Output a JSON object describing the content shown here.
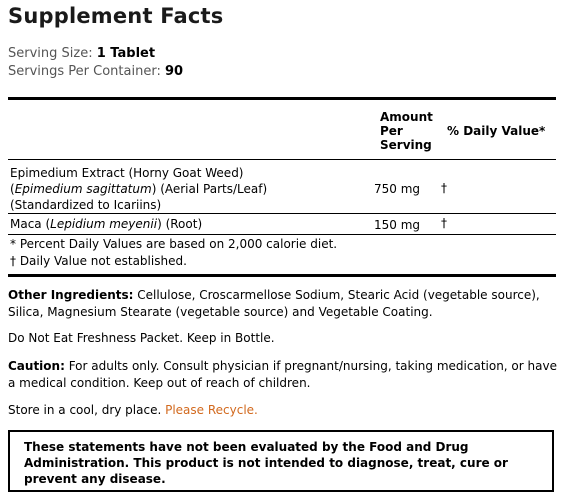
{
  "title": "Supplement Facts",
  "serving": {
    "size_label": "Serving Size:",
    "size_value": "1 Tablet",
    "per_container_label": "Servings Per Container:",
    "per_container_value": "90"
  },
  "table_headers": {
    "amount_line1": "Amount",
    "amount_line2": "Per",
    "amount_line3": "Serving",
    "daily_value": "% Daily Value*"
  },
  "ingredients": [
    {
      "line1": "Epimedium Extract (Horny Goat Weed)",
      "line2_italic": "Epimedium sagittatum",
      "line2_rest": " (Aerial Parts/Leaf)",
      "line3": "(Standardized to Icariins)",
      "amount": "750 mg",
      "dv": "†"
    },
    {
      "name_prefix": "Maca (",
      "name_italic": "Lepidium meyenii",
      "name_suffix": ") (Root)",
      "amount": "150 mg",
      "dv": "†"
    }
  ],
  "footnotes": {
    "percent": "* Percent Daily Values are based on 2,000 calorie diet.",
    "dagger": "† Daily Value not established."
  },
  "other_ingredients": {
    "label": "Other Ingredients:",
    "text": " Cellulose, Croscarmellose Sodium, Stearic Acid (vegetable source), Silica, Magnesium Stearate (vegetable source) and Vegetable Coating."
  },
  "freshness": "Do Not Eat Freshness Packet. Keep in Bottle.",
  "caution": {
    "label": "Caution:",
    "text": " For adults only. Consult physician if pregnant/nursing, taking medication, or have a medical condition. Keep out of reach of children."
  },
  "storage": {
    "text": "Store in a cool, dry place. ",
    "recycle": "Please Recycle."
  },
  "disclaimer": "These statements have not been evaluated by the Food and Drug Administration. This product is not intended to diagnose, treat, cure or prevent any disease.",
  "colors": {
    "recycle_link": "#d2691e",
    "serving_label": "#555555"
  }
}
